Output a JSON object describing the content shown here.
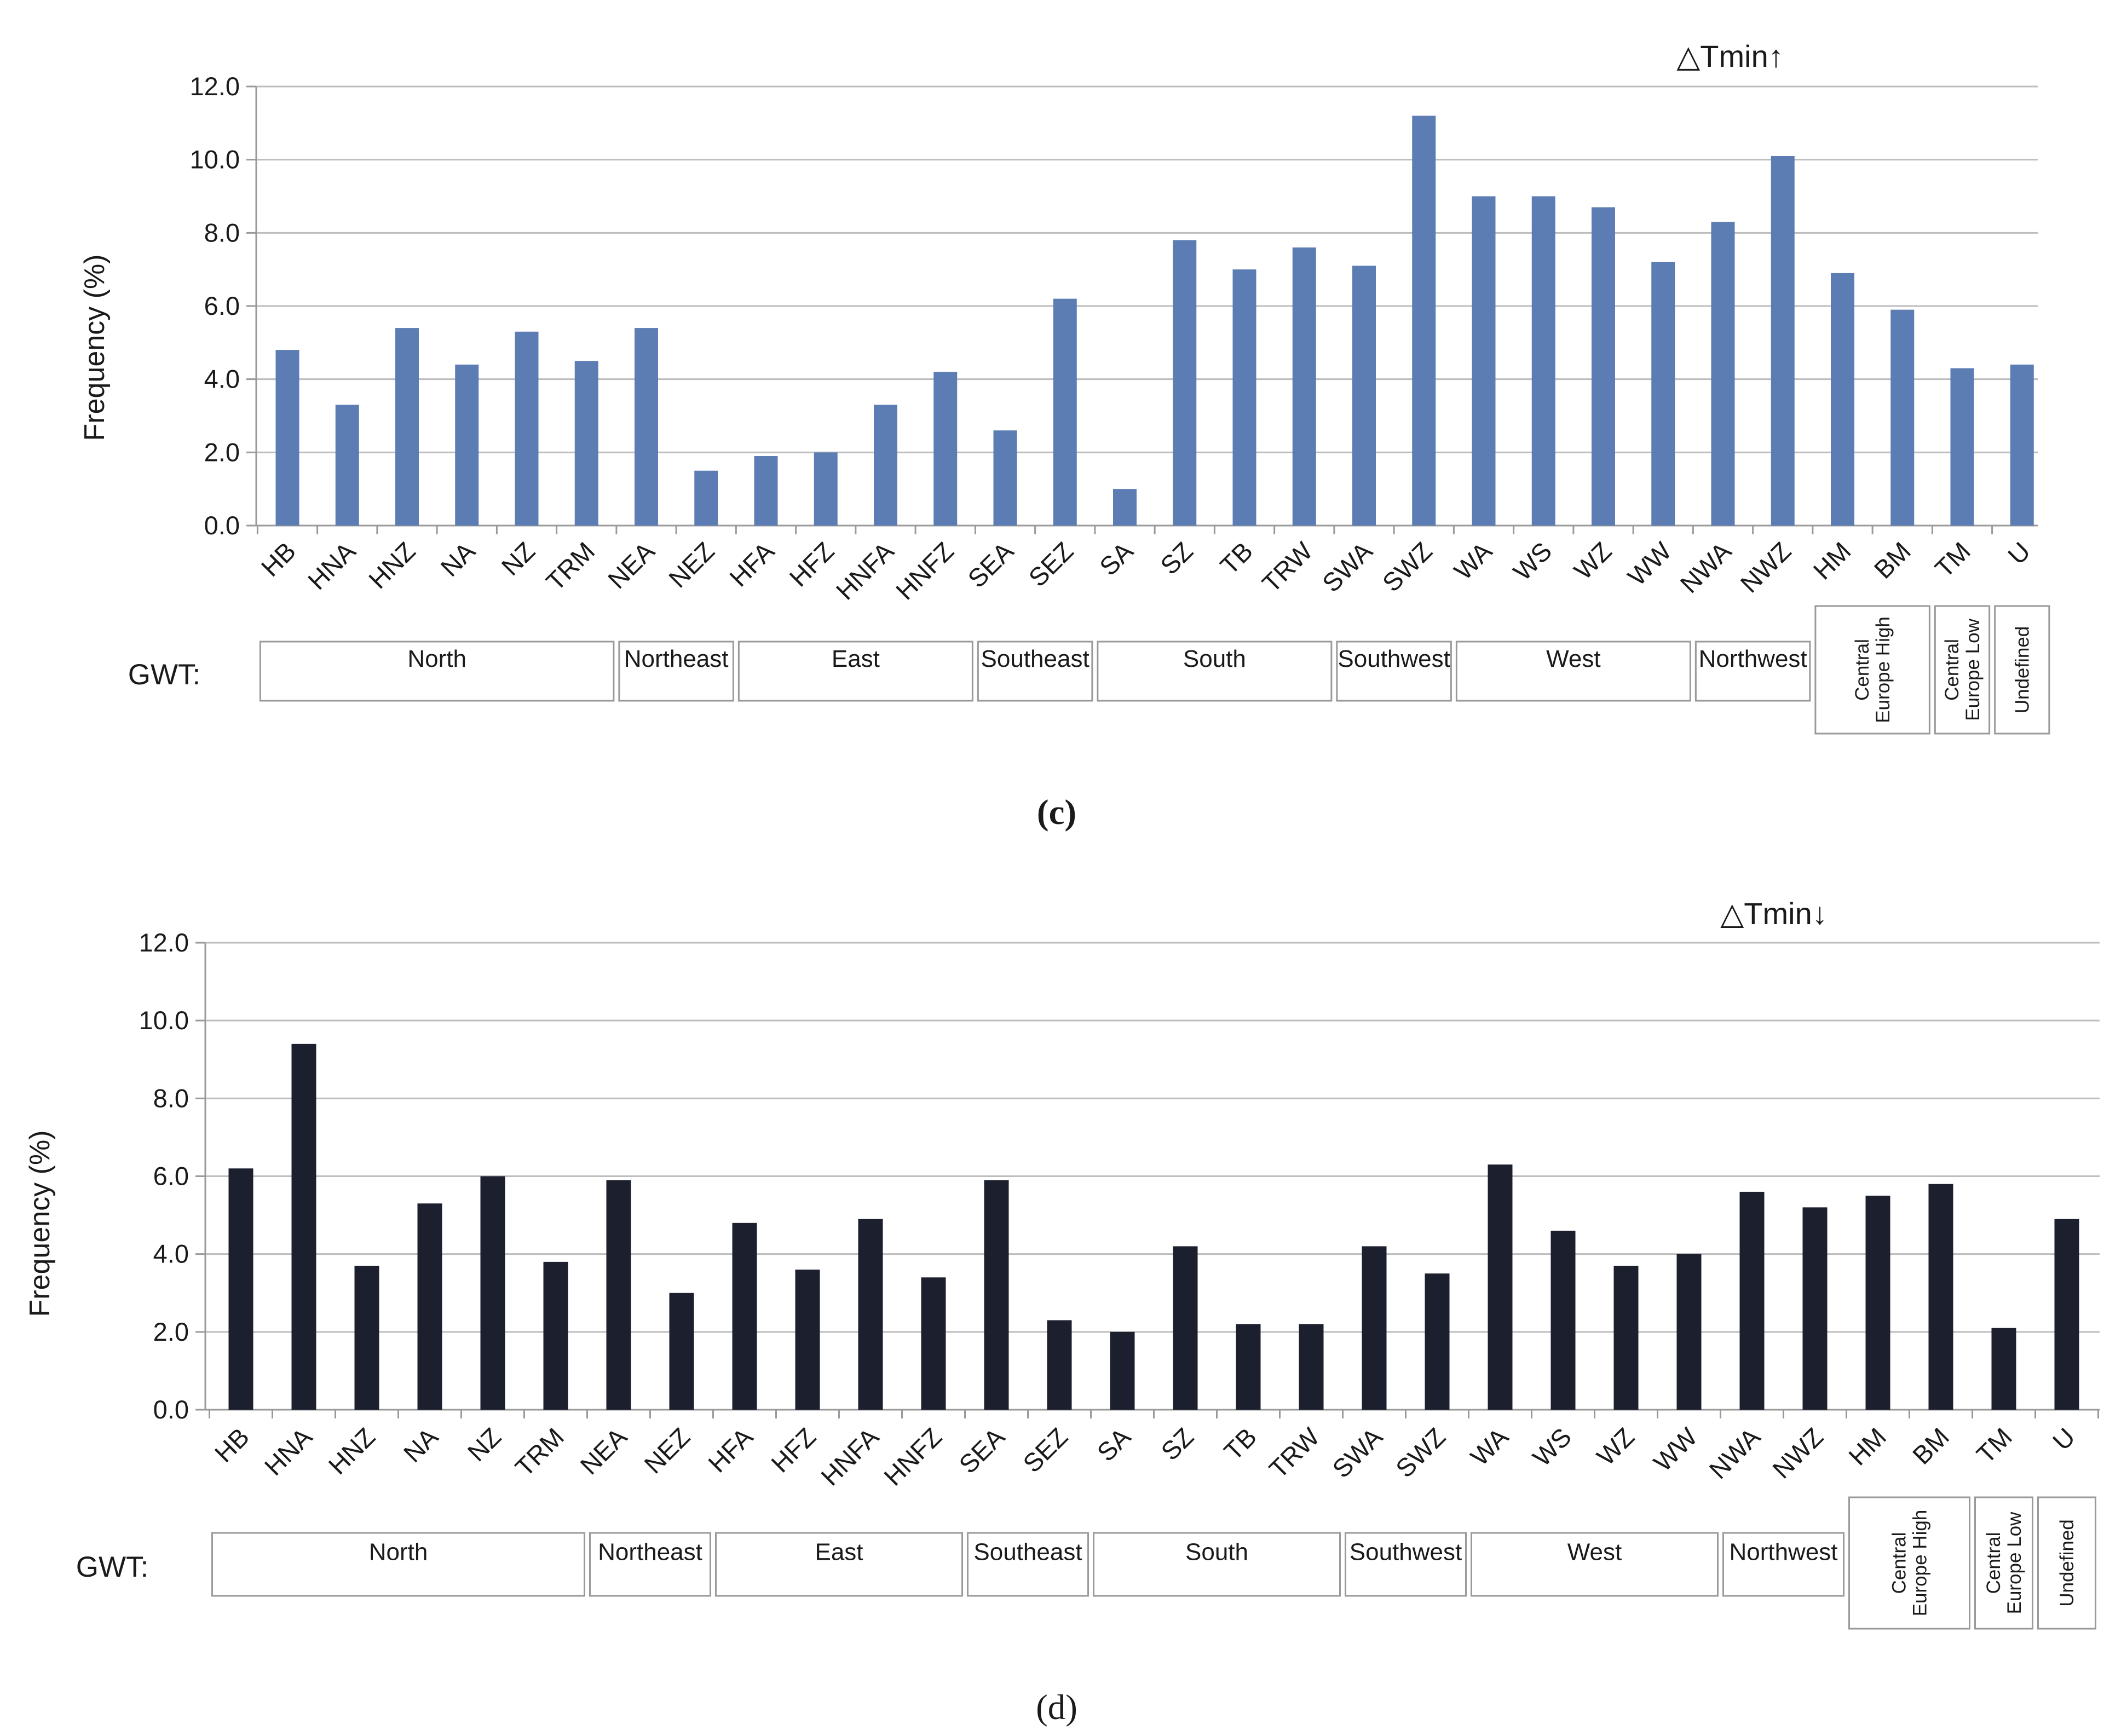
{
  "chart_data": [
    {
      "type": "bar",
      "panel": "c",
      "title": "△Tmin↑",
      "ylabel": "Frequency (%)",
      "xlabel": "",
      "ylim": [
        0,
        12
      ],
      "yticks": [
        "0.0",
        "2.0",
        "4.0",
        "6.0",
        "8.0",
        "10.0",
        "12.0"
      ],
      "grid": true,
      "bar_color": "#5b7db3",
      "categories": [
        "HB",
        "HNA",
        "HNZ",
        "NA",
        "NZ",
        "TRM",
        "NEA",
        "NEZ",
        "HFA",
        "HFZ",
        "HNFA",
        "HNFZ",
        "SEA",
        "SEZ",
        "SA",
        "SZ",
        "TB",
        "TRW",
        "SWA",
        "SWZ",
        "WA",
        "WS",
        "WZ",
        "WW",
        "NWA",
        "NWZ",
        "HM",
        "BM",
        "TM",
        "U"
      ],
      "values": [
        4.8,
        3.3,
        5.4,
        4.4,
        5.3,
        4.5,
        5.4,
        1.5,
        1.9,
        2.0,
        3.3,
        4.2,
        2.6,
        6.2,
        1.0,
        7.8,
        7.0,
        7.6,
        7.1,
        11.2,
        9.0,
        9.0,
        8.7,
        7.2,
        8.3,
        10.1,
        6.9,
        5.9,
        4.3,
        4.4
      ],
      "gwt_label": "GWT:",
      "caption": "(c)"
    },
    {
      "type": "bar",
      "panel": "d",
      "title": "△Tmin↓",
      "ylabel": "Frequency (%)",
      "xlabel": "",
      "ylim": [
        0,
        12
      ],
      "yticks": [
        "0.0",
        "2.0",
        "4.0",
        "6.0",
        "8.0",
        "10.0",
        "12.0"
      ],
      "grid": true,
      "bar_color": "#1c1f2e",
      "categories": [
        "HB",
        "HNA",
        "HNZ",
        "NA",
        "NZ",
        "TRM",
        "NEA",
        "NEZ",
        "HFA",
        "HFZ",
        "HNFA",
        "HNFZ",
        "SEA",
        "SEZ",
        "SA",
        "SZ",
        "TB",
        "TRW",
        "SWA",
        "SWZ",
        "WA",
        "WS",
        "WZ",
        "WW",
        "NWA",
        "NWZ",
        "HM",
        "BM",
        "TM",
        "U"
      ],
      "values": [
        6.2,
        9.4,
        3.7,
        5.3,
        6.0,
        3.8,
        5.9,
        3.0,
        4.8,
        3.6,
        4.9,
        3.4,
        5.9,
        2.3,
        2.0,
        4.2,
        2.2,
        2.2,
        4.2,
        3.5,
        6.3,
        4.6,
        3.7,
        4.0,
        5.6,
        5.2,
        5.5,
        5.8,
        2.1,
        4.9
      ],
      "gwt_label": "GWT:",
      "caption": "(d)"
    }
  ],
  "gwt_groups": [
    {
      "label": "North",
      "first": 0,
      "last": 5,
      "vertical": false
    },
    {
      "label": "Northeast",
      "first": 6,
      "last": 7,
      "vertical": false
    },
    {
      "label": "East",
      "first": 8,
      "last": 11,
      "vertical": false
    },
    {
      "label": "Southeast",
      "first": 12,
      "last": 13,
      "vertical": false
    },
    {
      "label": "South",
      "first": 14,
      "last": 17,
      "vertical": false
    },
    {
      "label": "Southwest",
      "first": 18,
      "last": 19,
      "vertical": false
    },
    {
      "label": "West",
      "first": 20,
      "last": 23,
      "vertical": false
    },
    {
      "label": "Northwest",
      "first": 24,
      "last": 25,
      "vertical": false
    },
    {
      "label": "Central\nEurope High",
      "first": 26,
      "last": 27,
      "vertical": true
    },
    {
      "label": "Central\nEurope Low",
      "first": 28,
      "last": 28,
      "vertical": true
    },
    {
      "label": "Undefined",
      "first": 29,
      "last": 29,
      "vertical": true
    }
  ]
}
